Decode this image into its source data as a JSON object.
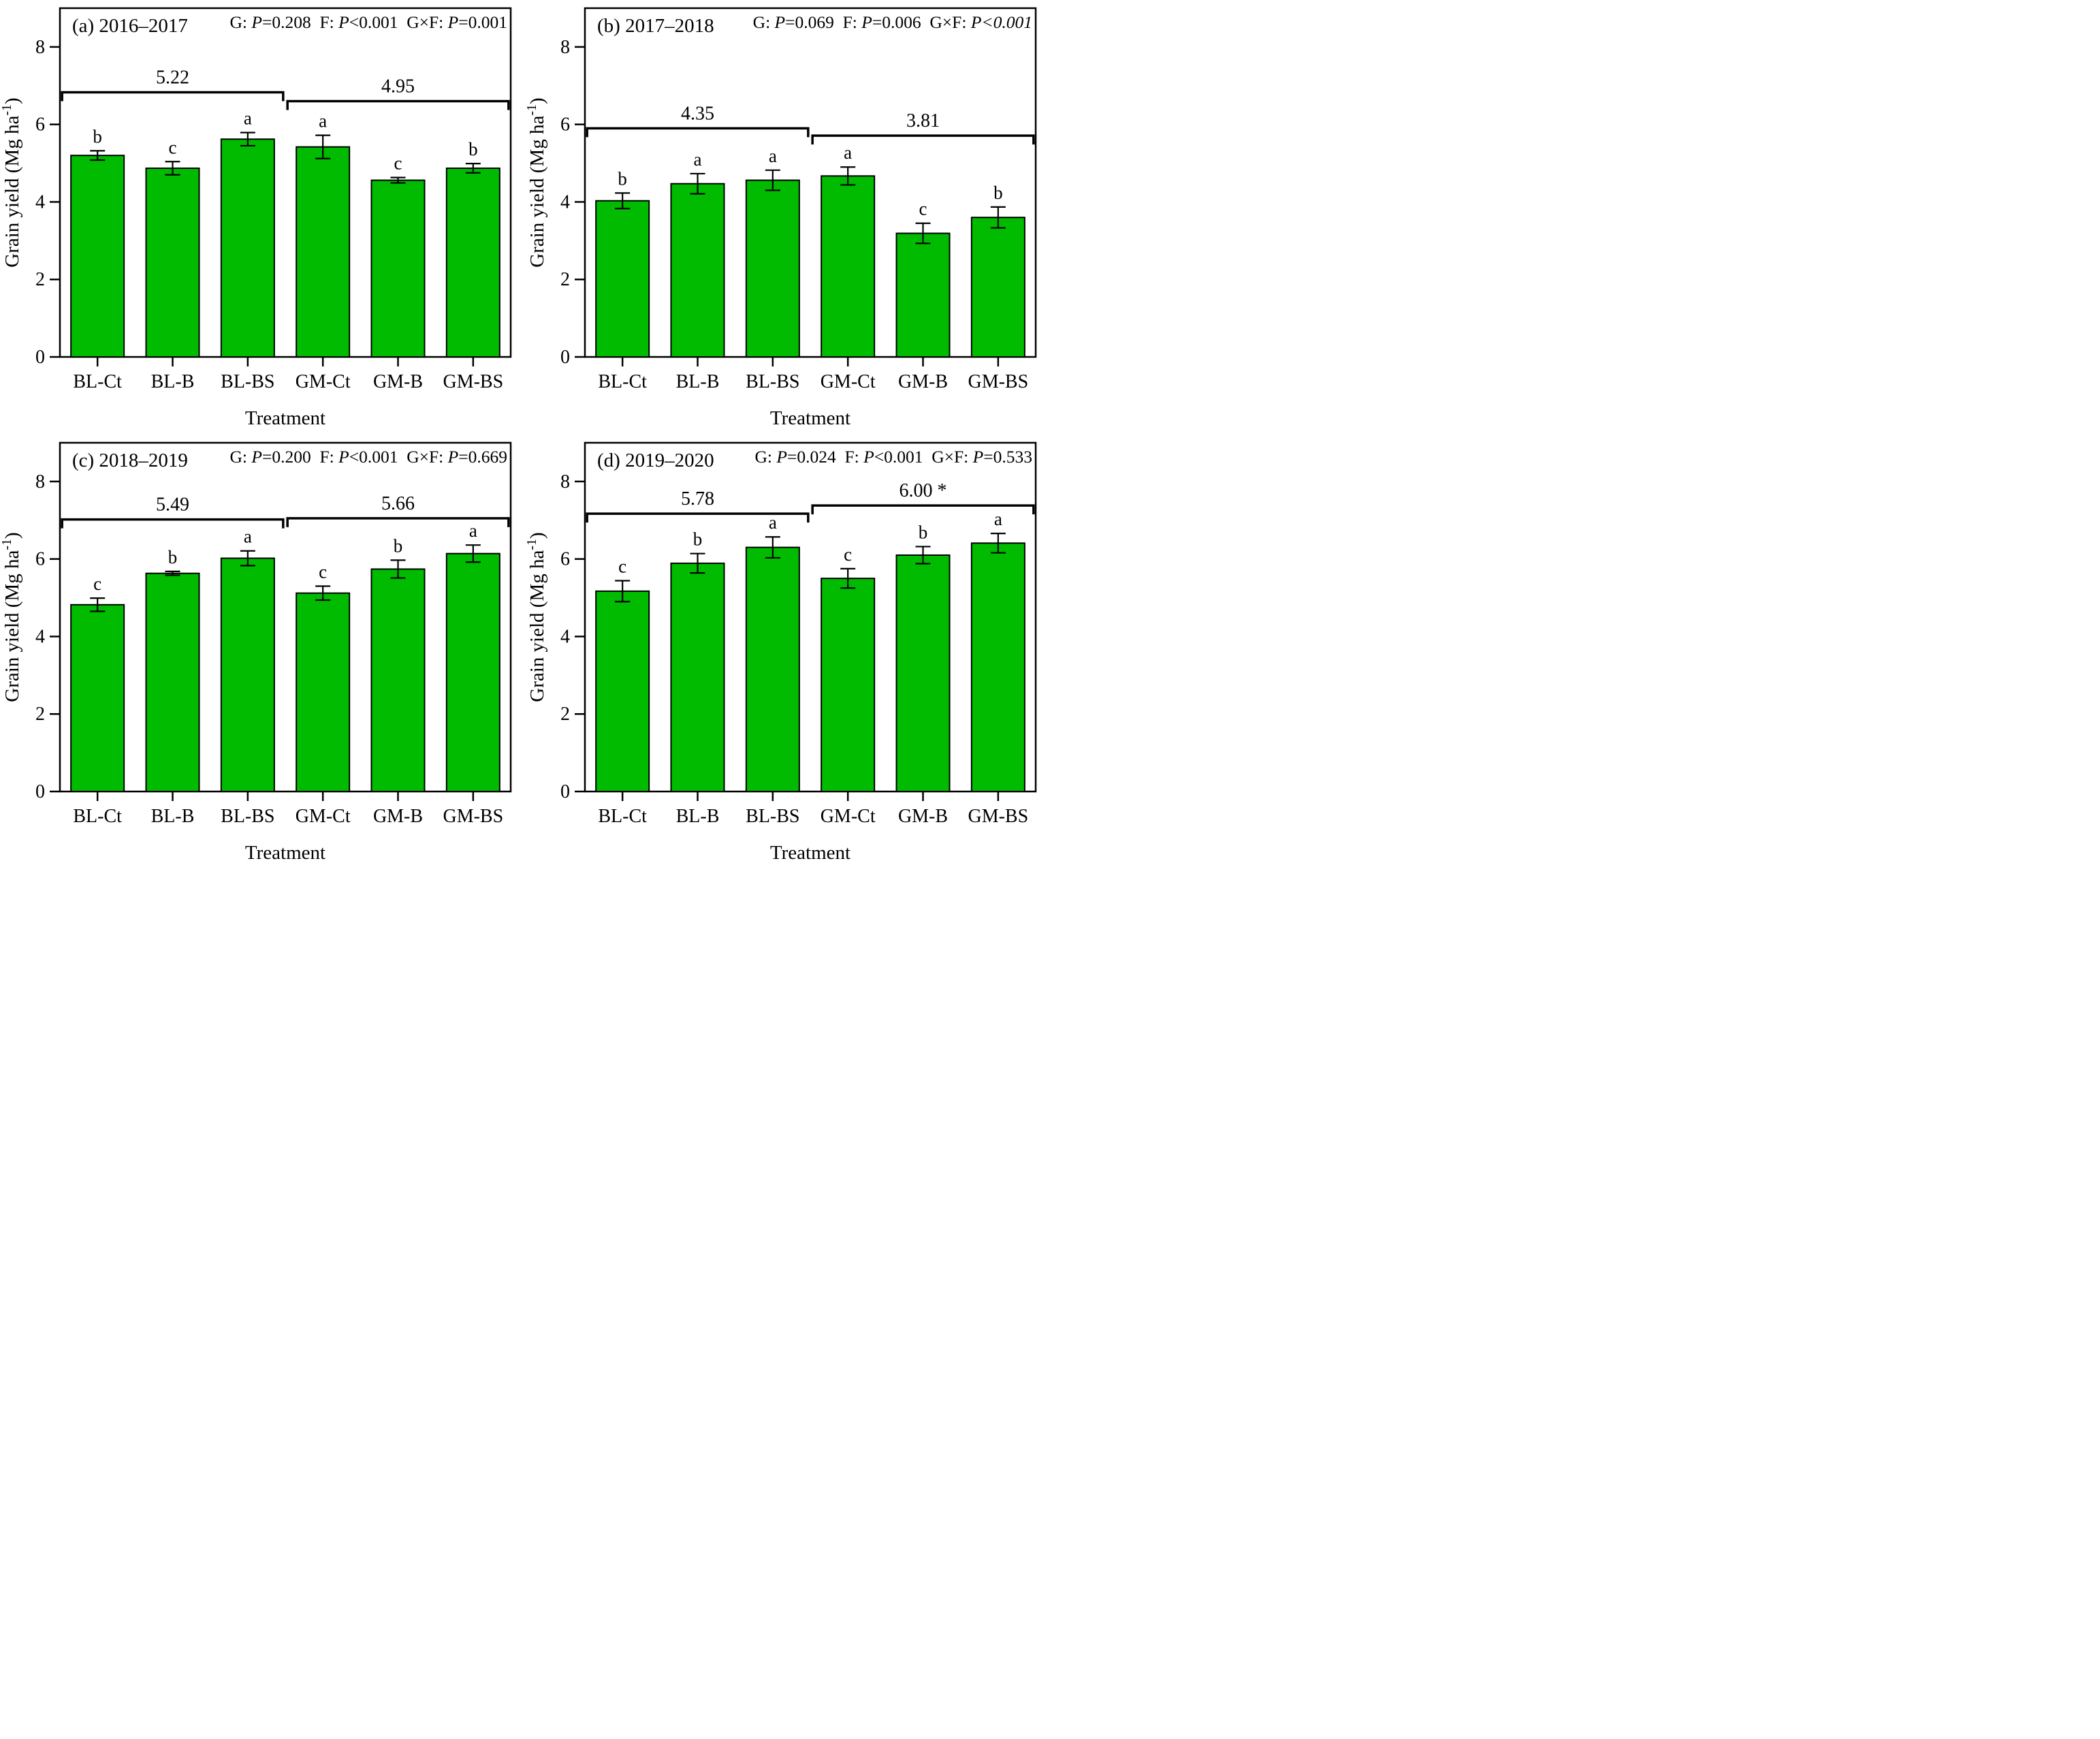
{
  "figure": {
    "background": "#ffffff",
    "bar_fill_color": "#00bb00",
    "bar_edge_color": "#000000",
    "axis_color": "#000000",
    "categories": [
      "BL-Ct",
      "BL-B",
      "BL-BS",
      "GM-Ct",
      "GM-B",
      "GM-BS"
    ],
    "x_axis_title": "Treatment",
    "y_axis_title_parts": {
      "pre": "Grain yield (Mg ha",
      "sup": "-1",
      "post": ")"
    },
    "y_ticks": [
      0,
      2,
      4,
      6,
      8
    ],
    "ylim": [
      0,
      9
    ],
    "grid": "off",
    "legend": "none"
  },
  "chart_data": [
    {
      "type": "bar",
      "panel": "a",
      "title": "(a) 2016–2017",
      "stats": [
        {
          "factor": "G",
          "op": "=",
          "value": "0.208"
        },
        {
          "factor": "F",
          "op": "<",
          "value": "0.001"
        },
        {
          "factor": "G×F",
          "op": "=",
          "value": "0.001"
        }
      ],
      "categories": [
        "BL-Ct",
        "BL-B",
        "BL-BS",
        "GM-Ct",
        "GM-B",
        "GM-BS"
      ],
      "values": [
        5.2,
        4.87,
        5.62,
        5.42,
        4.56,
        4.87
      ],
      "errors": [
        0.12,
        0.17,
        0.17,
        0.3,
        0.07,
        0.12
      ],
      "letters": [
        "b",
        "c",
        "a",
        "a",
        "c",
        "b"
      ],
      "group_brackets": [
        {
          "label": "5.22",
          "from": 0,
          "to": 2,
          "y": 6.83
        },
        {
          "label": "4.95",
          "from": 3,
          "to": 5,
          "y": 6.6
        }
      ],
      "xlabel": "Treatment",
      "ylabel": "Grain yield (Mg ha-1)",
      "ylim": [
        0,
        9
      ]
    },
    {
      "type": "bar",
      "panel": "b",
      "title": "(b) 2017–2018",
      "stats": [
        {
          "factor": "G",
          "op": "=",
          "value": "0.069"
        },
        {
          "factor": "F",
          "op": "=",
          "value": "0.006"
        },
        {
          "factor": "G×F",
          "op": "<",
          "value": "0.001",
          "italic_value": true
        }
      ],
      "categories": [
        "BL-Ct",
        "BL-B",
        "BL-BS",
        "GM-Ct",
        "GM-B",
        "GM-BS"
      ],
      "values": [
        4.03,
        4.47,
        4.56,
        4.67,
        3.19,
        3.6
      ],
      "errors": [
        0.2,
        0.26,
        0.26,
        0.23,
        0.26,
        0.27
      ],
      "letters": [
        "b",
        "a",
        "a",
        "a",
        "c",
        "b"
      ],
      "group_brackets": [
        {
          "label": "4.35",
          "from": 0,
          "to": 2,
          "y": 5.9
        },
        {
          "label": "3.81",
          "from": 3,
          "to": 5,
          "y": 5.71
        }
      ],
      "xlabel": "Treatment",
      "ylabel": "Grain yield (Mg ha-1)",
      "ylim": [
        0,
        9
      ]
    },
    {
      "type": "bar",
      "panel": "c",
      "title": "(c) 2018–2019",
      "stats": [
        {
          "factor": "G",
          "op": "=",
          "value": "0.200"
        },
        {
          "factor": "F",
          "op": "<",
          "value": "0.001"
        },
        {
          "factor": "G×F",
          "op": "=",
          "value": "0.669"
        }
      ],
      "categories": [
        "BL-Ct",
        "BL-B",
        "BL-BS",
        "GM-Ct",
        "GM-B",
        "GM-BS"
      ],
      "values": [
        4.82,
        5.63,
        6.02,
        5.12,
        5.74,
        6.14
      ],
      "errors": [
        0.17,
        0.05,
        0.19,
        0.18,
        0.23,
        0.22
      ],
      "letters": [
        "c",
        "b",
        "a",
        "c",
        "b",
        "a"
      ],
      "group_brackets": [
        {
          "label": "5.49",
          "from": 0,
          "to": 2,
          "y": 7.02
        },
        {
          "label": "5.66",
          "from": 3,
          "to": 5,
          "y": 7.05
        }
      ],
      "xlabel": "Treatment",
      "ylabel": "Grain yield (Mg ha-1)",
      "ylim": [
        0,
        9
      ]
    },
    {
      "type": "bar",
      "panel": "d",
      "title": "(d) 2019–2020",
      "stats": [
        {
          "factor": "G",
          "op": "=",
          "value": "0.024"
        },
        {
          "factor": "F",
          "op": "<",
          "value": "0.001"
        },
        {
          "factor": "G×F",
          "op": "=",
          "value": "0.533"
        }
      ],
      "categories": [
        "BL-Ct",
        "BL-B",
        "BL-BS",
        "GM-Ct",
        "GM-B",
        "GM-BS"
      ],
      "values": [
        5.17,
        5.89,
        6.3,
        5.5,
        6.1,
        6.41
      ],
      "errors": [
        0.27,
        0.25,
        0.27,
        0.25,
        0.22,
        0.25
      ],
      "letters": [
        "c",
        "b",
        "a",
        "c",
        "b",
        "a"
      ],
      "group_brackets": [
        {
          "label": "5.78",
          "from": 0,
          "to": 2,
          "y": 7.17
        },
        {
          "label": "6.00 *",
          "from": 3,
          "to": 5,
          "y": 7.38
        }
      ],
      "xlabel": "Treatment",
      "ylabel": "Grain yield (Mg ha-1)",
      "ylim": [
        0,
        9
      ]
    }
  ]
}
